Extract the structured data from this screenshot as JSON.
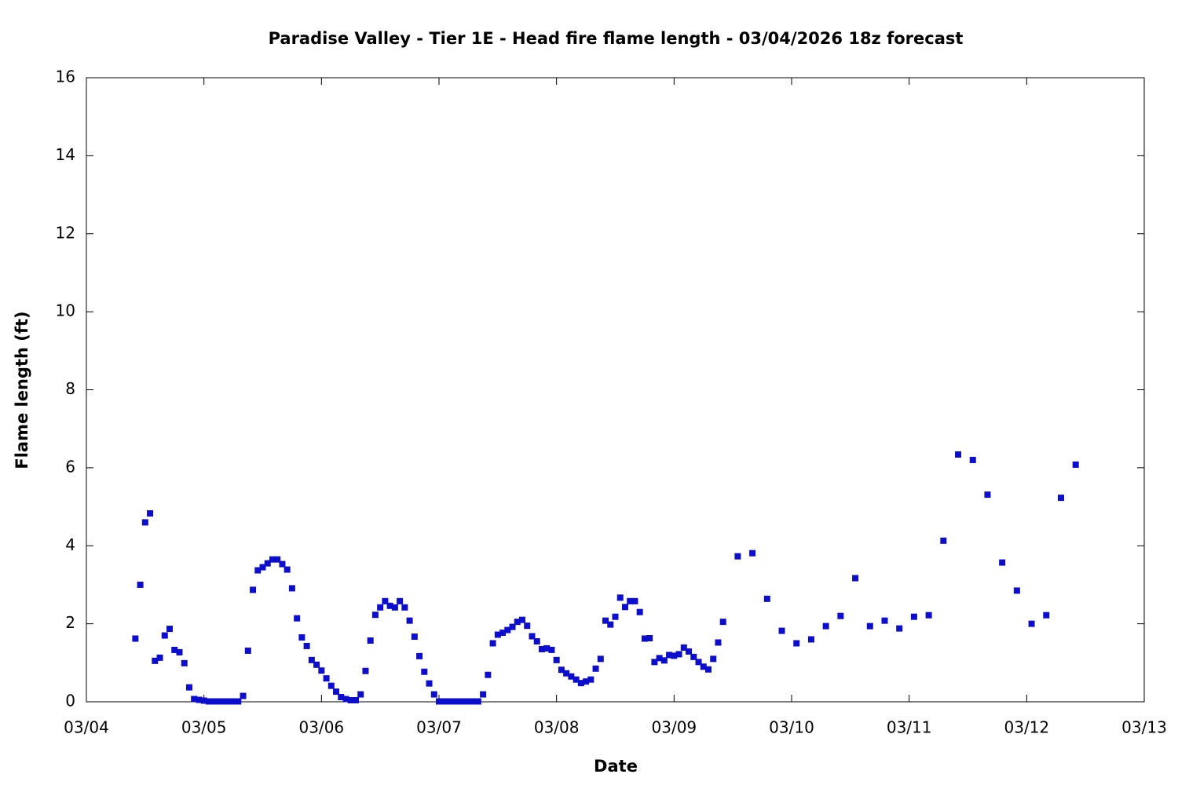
{
  "chart_data": {
    "type": "scatter",
    "title": "Paradise Valley - Tier 1E - Head fire flame length - 03/04/2026 18z forecast",
    "x_label": "Date",
    "y_label": "Flame length (ft)",
    "color": "#0d0dcc",
    "grid": false,
    "xlim": [
      0,
      216
    ],
    "xticks": [
      {
        "value": 0,
        "label": "03/04"
      },
      {
        "value": 24,
        "label": "03/05"
      },
      {
        "value": 48,
        "label": "03/06"
      },
      {
        "value": 72,
        "label": "03/07"
      },
      {
        "value": 96,
        "label": "03/08"
      },
      {
        "value": 120,
        "label": "03/09"
      },
      {
        "value": 144,
        "label": "03/10"
      },
      {
        "value": 168,
        "label": "03/11"
      },
      {
        "value": 192,
        "label": "03/12"
      },
      {
        "value": 216,
        "label": "03/13"
      }
    ],
    "ylim": [
      0,
      16
    ],
    "yticks": [
      0,
      2,
      4,
      6,
      8,
      10,
      12,
      14,
      16
    ],
    "x": [
      10,
      11,
      12,
      13,
      14,
      15,
      16,
      17,
      18,
      19,
      20,
      21,
      22,
      23,
      24,
      25,
      26,
      27,
      28,
      29,
      30,
      31,
      32,
      33,
      34,
      35,
      36,
      37,
      38,
      39,
      40,
      41,
      42,
      43,
      44,
      45,
      46,
      47,
      48,
      49,
      50,
      51,
      52,
      53,
      54,
      55,
      56,
      57,
      58,
      59,
      60,
      61,
      62,
      63,
      64,
      65,
      66,
      67,
      68,
      69,
      70,
      71,
      72,
      73,
      74,
      75,
      76,
      77,
      78,
      79,
      80,
      81,
      82,
      83,
      84,
      85,
      86,
      87,
      88,
      89,
      90,
      91,
      92,
      93,
      94,
      95,
      96,
      97,
      98,
      99,
      100,
      101,
      102,
      103,
      104,
      105,
      106,
      107,
      108,
      109,
      110,
      111,
      112,
      113,
      114,
      115,
      116,
      117,
      118,
      119,
      120,
      121,
      122,
      123,
      124,
      125,
      126,
      127,
      128,
      129,
      130,
      133,
      136,
      139,
      142,
      145,
      148,
      151,
      154,
      157,
      160,
      163,
      166,
      169,
      172,
      175,
      178,
      181,
      184,
      187,
      190,
      193,
      196,
      199,
      202
    ],
    "values": [
      1.62,
      3.0,
      4.6,
      4.83,
      1.05,
      1.13,
      1.7,
      1.87,
      1.33,
      1.27,
      0.99,
      0.37,
      0.07,
      0.05,
      0.03,
      0.01,
      0.01,
      0.01,
      0.01,
      0.01,
      0.01,
      0.01,
      0.15,
      1.31,
      2.87,
      3.37,
      3.45,
      3.55,
      3.65,
      3.65,
      3.53,
      3.39,
      2.91,
      2.14,
      1.65,
      1.43,
      1.07,
      0.95,
      0.8,
      0.6,
      0.41,
      0.26,
      0.12,
      0.07,
      0.04,
      0.04,
      0.19,
      0.79,
      1.57,
      2.23,
      2.42,
      2.58,
      2.46,
      2.42,
      2.58,
      2.42,
      2.08,
      1.67,
      1.17,
      0.77,
      0.47,
      0.19,
      0.01,
      0.01,
      0.01,
      0.01,
      0.01,
      0.01,
      0.01,
      0.01,
      0.01,
      0.19,
      0.69,
      1.5,
      1.72,
      1.77,
      1.84,
      1.92,
      2.05,
      2.1,
      1.95,
      1.68,
      1.55,
      1.35,
      1.37,
      1.33,
      1.07,
      0.82,
      0.73,
      0.65,
      0.57,
      0.48,
      0.52,
      0.57,
      0.85,
      1.1,
      2.08,
      1.98,
      2.18,
      2.67,
      2.43,
      2.58,
      2.58,
      2.3,
      1.62,
      1.63,
      1.02,
      1.12,
      1.06,
      1.2,
      1.18,
      1.22,
      1.39,
      1.29,
      1.15,
      1.02,
      0.9,
      0.83,
      1.1,
      1.52,
      2.05,
      3.73,
      3.81,
      2.64,
      1.82,
      1.5,
      1.6,
      1.94,
      2.2,
      3.17,
      1.94,
      2.08,
      1.88,
      2.18,
      2.22,
      4.13,
      6.34,
      6.2,
      5.31,
      3.57,
      2.85,
      2.0,
      2.22,
      5.23,
      6.08
    ]
  }
}
